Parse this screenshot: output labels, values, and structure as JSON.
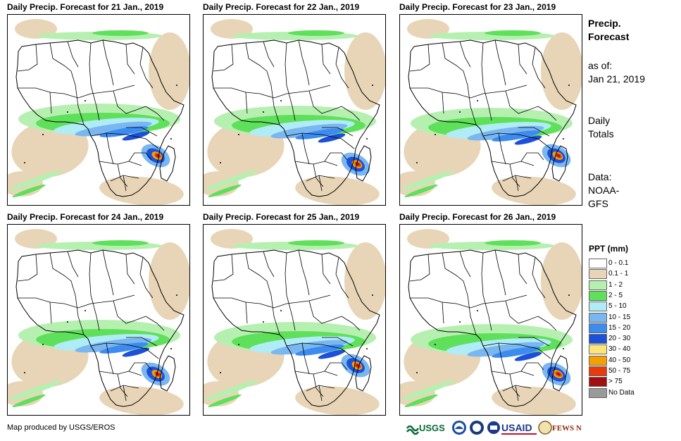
{
  "panels": [
    {
      "title": "Daily Precip. Forecast for 21 Jan., 2019"
    },
    {
      "title": "Daily Precip. Forecast for 22 Jan., 2019"
    },
    {
      "title": "Daily Precip. Forecast for 23 Jan., 2019"
    },
    {
      "title": "Daily Precip. Forecast for 24 Jan., 2019"
    },
    {
      "title": "Daily Precip. Forecast for 25 Jan., 2019"
    },
    {
      "title": "Daily Precip. Forecast for 26 Jan., 2019"
    }
  ],
  "info": {
    "heading_line1": "Precip.",
    "heading_line2": "Forecast",
    "asof_label": "as of:",
    "asof_date": "Jan 21, 2019",
    "totals_line1": "Daily",
    "totals_line2": "Totals",
    "data_label": "Data:",
    "data_source_line1": "NOAA-",
    "data_source_line2": "GFS"
  },
  "legend": {
    "title": "PPT (mm)",
    "items": [
      {
        "label": "0 - 0.1",
        "color": "#ffffff"
      },
      {
        "label": "0.1 - 1",
        "color": "#e8d5b7"
      },
      {
        "label": "1 - 2",
        "color": "#b6f0b0"
      },
      {
        "label": "2 - 5",
        "color": "#5fe05a"
      },
      {
        "label": "5 - 10",
        "color": "#b0ecf6"
      },
      {
        "label": "10 - 15",
        "color": "#7ab6f0"
      },
      {
        "label": "15 - 20",
        "color": "#3c8cf0"
      },
      {
        "label": "20 - 30",
        "color": "#1c50d8"
      },
      {
        "label": "30 - 40",
        "color": "#fce67a"
      },
      {
        "label": "40 - 50",
        "color": "#f5a000"
      },
      {
        "label": "50 - 75",
        "color": "#e83a0a"
      },
      {
        "label": "> 75",
        "color": "#a01010"
      },
      {
        "label": "No Data",
        "color": "#9a9a9a"
      }
    ]
  },
  "credit": "Map produced by USGS/EROS",
  "logos": {
    "usgs": "USGS",
    "usaid": "USAID",
    "fewsnet": "FEWS NET"
  }
}
